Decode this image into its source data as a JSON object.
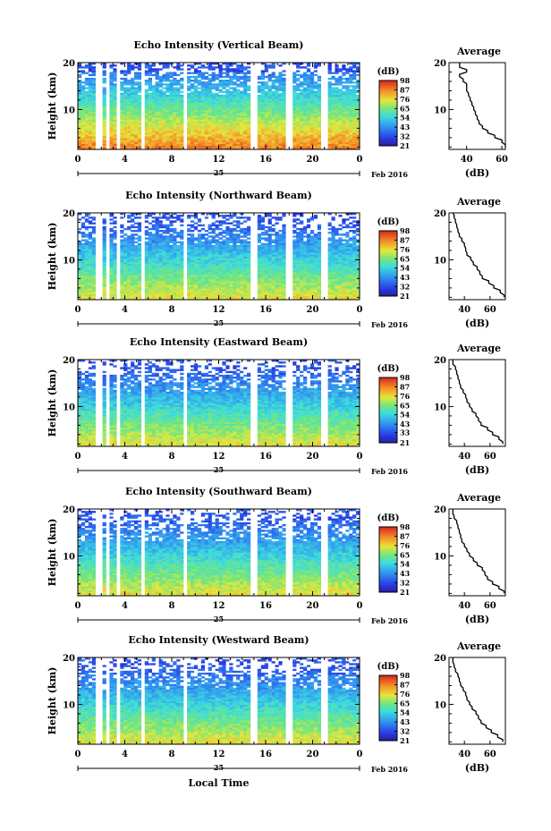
{
  "figure": {
    "xaxis_label": "Local Time",
    "date_label": "Feb 2016",
    "day_label": "25"
  },
  "chart_data": [
    {
      "type": "heatmap",
      "title": "Echo Intensity (Vertical Beam)",
      "ylabel": "Height (km)",
      "x_ticks": [
        "0",
        "4",
        "8",
        "12",
        "16",
        "20",
        "0"
      ],
      "y_ticks": [
        "10",
        "20"
      ],
      "xlim": [
        0,
        24
      ],
      "ylim": [
        1.5,
        20
      ],
      "colorbar": {
        "label": "(dB)",
        "ticks": [
          "21",
          "32",
          "43",
          "54",
          "65",
          "76",
          "87",
          "98"
        ],
        "range": [
          21,
          98
        ]
      },
      "profile": {
        "title": "Average",
        "xlabel": "(dB)",
        "x_ticks": [
          "40",
          "60"
        ],
        "y_ticks": [
          "10",
          "20"
        ],
        "xlim": [
          30,
          62
        ],
        "ylim": [
          1.5,
          20
        ],
        "heights": [
          2,
          3,
          4,
          5,
          6,
          7,
          8,
          9,
          10,
          11,
          12,
          13,
          14,
          15,
          16,
          17,
          18,
          19,
          20
        ],
        "values": [
          62,
          60,
          56,
          52,
          49,
          47,
          46,
          45,
          44,
          43,
          42,
          41,
          40,
          40,
          38,
          36,
          40,
          36,
          36
        ]
      }
    },
    {
      "type": "heatmap",
      "title": "Echo Intensity (Northward Beam)",
      "ylabel": "Height (km)",
      "x_ticks": [
        "0",
        "4",
        "8",
        "12",
        "16",
        "20",
        "0"
      ],
      "y_ticks": [
        "10",
        "20"
      ],
      "xlim": [
        0,
        24
      ],
      "ylim": [
        1.5,
        20
      ],
      "colorbar": {
        "label": "(dB)",
        "ticks": [
          "21",
          "32",
          "43",
          "54",
          "65",
          "76",
          "87",
          "98"
        ],
        "range": [
          21,
          98
        ]
      },
      "profile": {
        "title": "Average",
        "xlabel": "(dB)",
        "x_ticks": [
          "40",
          "60"
        ],
        "y_ticks": [
          "10",
          "20"
        ],
        "xlim": [
          28,
          72
        ],
        "ylim": [
          1.5,
          20
        ],
        "heights": [
          2,
          3,
          4,
          5,
          6,
          7,
          8,
          9,
          10,
          11,
          12,
          13,
          14,
          15,
          16,
          17,
          18,
          19,
          20
        ],
        "values": [
          71,
          68,
          63,
          59,
          54,
          52,
          50,
          47,
          45,
          42,
          41,
          40,
          38,
          36,
          35,
          34,
          33,
          32,
          31
        ]
      }
    },
    {
      "type": "heatmap",
      "title": "Echo Intensity (Eastward Beam)",
      "ylabel": "Height (km)",
      "x_ticks": [
        "0",
        "4",
        "8",
        "12",
        "16",
        "20",
        "0"
      ],
      "y_ticks": [
        "10",
        "20"
      ],
      "xlim": [
        0,
        24
      ],
      "ylim": [
        1.5,
        20
      ],
      "colorbar": {
        "label": "(dB)",
        "ticks": [
          "21",
          "33",
          "43",
          "54",
          "65",
          "76",
          "87",
          "98"
        ],
        "range": [
          21,
          98
        ]
      },
      "profile": {
        "title": "Average",
        "xlabel": "(dB)",
        "x_ticks": [
          "40",
          "60"
        ],
        "y_ticks": [
          "10",
          "20"
        ],
        "xlim": [
          28,
          72
        ],
        "ylim": [
          1.5,
          20
        ],
        "heights": [
          2,
          3,
          4,
          5,
          6,
          7,
          8,
          9,
          10,
          11,
          12,
          13,
          14,
          15,
          16,
          17,
          18,
          19,
          20
        ],
        "values": [
          70,
          67,
          62,
          58,
          53,
          51,
          49,
          46,
          44,
          42,
          41,
          39,
          37,
          36,
          35,
          34,
          33,
          31,
          31
        ]
      }
    },
    {
      "type": "heatmap",
      "title": "Echo Intensity (Southward Beam)",
      "ylabel": "Height (km)",
      "x_ticks": [
        "0",
        "4",
        "8",
        "12",
        "16",
        "20",
        "0"
      ],
      "y_ticks": [
        "10",
        "20"
      ],
      "xlim": [
        0,
        24
      ],
      "ylim": [
        1.5,
        20
      ],
      "colorbar": {
        "label": "(dB)",
        "ticks": [
          "21",
          "32",
          "43",
          "54",
          "65",
          "76",
          "87",
          "98"
        ],
        "range": [
          21,
          98
        ]
      },
      "profile": {
        "title": "Average",
        "xlabel": "(dB)",
        "x_ticks": [
          "40",
          "60"
        ],
        "y_ticks": [
          "10",
          "20"
        ],
        "xlim": [
          28,
          72
        ],
        "ylim": [
          1.5,
          20
        ],
        "heights": [
          2,
          3,
          4,
          5,
          6,
          7,
          8,
          9,
          10,
          11,
          12,
          13,
          14,
          15,
          16,
          17,
          18,
          19,
          20
        ],
        "values": [
          71,
          67,
          62,
          58,
          56,
          54,
          50,
          47,
          44,
          42,
          40,
          38,
          37,
          36,
          35,
          34,
          32,
          31,
          31
        ]
      }
    },
    {
      "type": "heatmap",
      "title": "Echo Intensity (Westward Beam)",
      "ylabel": "Height (km)",
      "x_ticks": [
        "0",
        "4",
        "8",
        "12",
        "16",
        "20",
        "0"
      ],
      "y_ticks": [
        "10",
        "20"
      ],
      "xlim": [
        0,
        24
      ],
      "ylim": [
        1.5,
        20
      ],
      "colorbar": {
        "label": "(dB)",
        "ticks": [
          "21",
          "32",
          "43",
          "54",
          "65",
          "76",
          "87",
          "98"
        ],
        "range": [
          21,
          98
        ]
      },
      "profile": {
        "title": "Average",
        "xlabel": "(dB)",
        "x_ticks": [
          "40",
          "60"
        ],
        "y_ticks": [
          "10",
          "20"
        ],
        "xlim": [
          28,
          72
        ],
        "ylim": [
          1.5,
          20
        ],
        "heights": [
          2,
          3,
          4,
          5,
          6,
          7,
          8,
          9,
          10,
          11,
          12,
          13,
          14,
          15,
          16,
          17,
          18,
          19,
          20
        ],
        "values": [
          70,
          66,
          61,
          57,
          53,
          51,
          49,
          46,
          44,
          42,
          41,
          39,
          37,
          36,
          35,
          33,
          32,
          31,
          31
        ]
      }
    }
  ]
}
